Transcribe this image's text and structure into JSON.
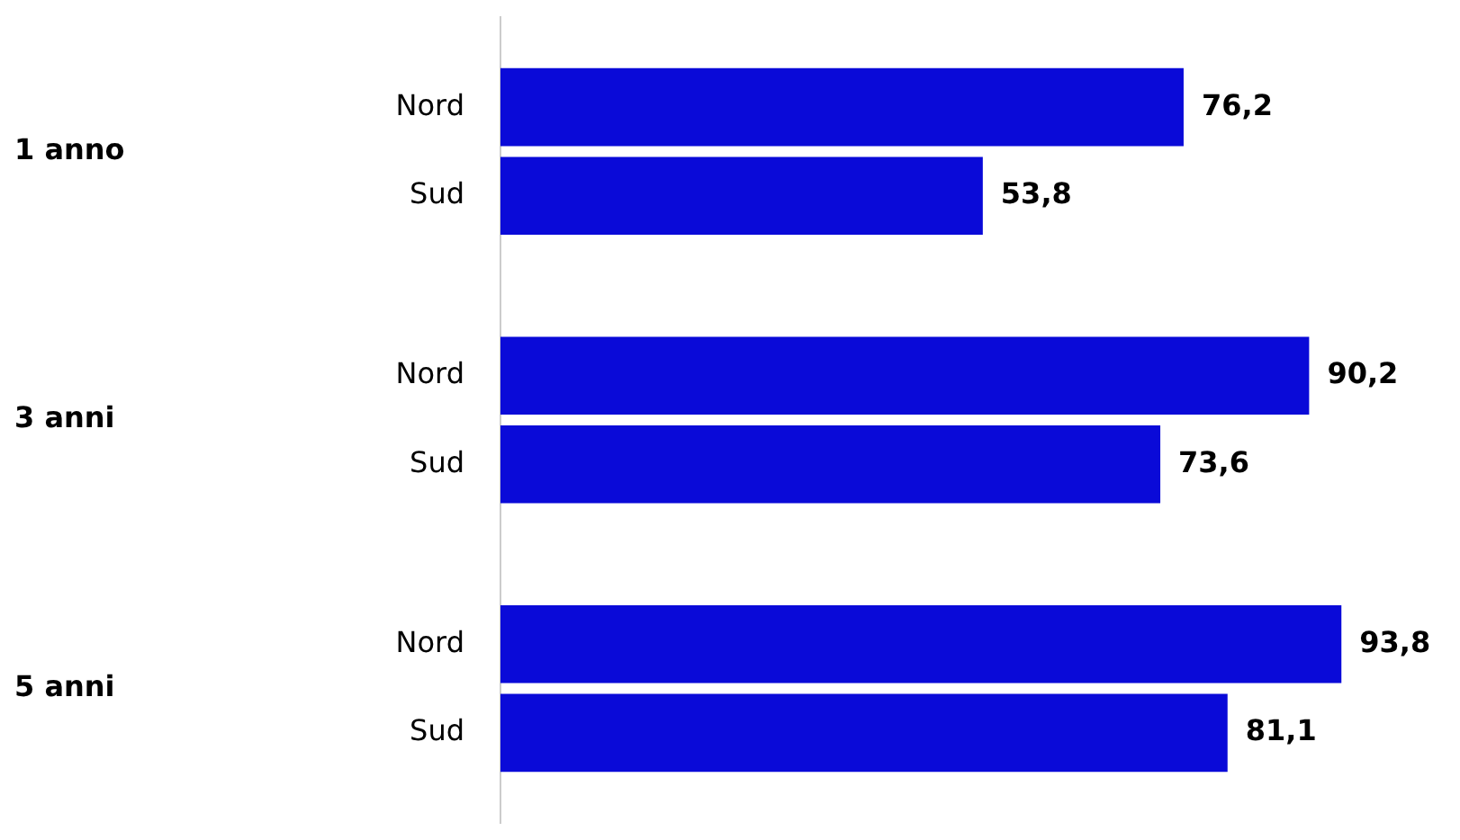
{
  "chart_data": {
    "type": "bar",
    "orientation": "horizontal",
    "categories": [
      "1 anno",
      "3 anni",
      "5 anni"
    ],
    "series": [
      {
        "name": "Nord",
        "color": "#0a0ad8",
        "values": [
          76.2,
          90.2,
          93.8
        ],
        "value_labels": [
          "76,2",
          "90,2",
          "93,8"
        ]
      },
      {
        "name": "Sud",
        "color": "#0a0ad8",
        "values": [
          53.8,
          73.6,
          81.1
        ],
        "value_labels": [
          "53,8",
          "73,6",
          "81,1"
        ]
      }
    ],
    "grid": false,
    "legend": false,
    "tick_labels": "y"
  }
}
